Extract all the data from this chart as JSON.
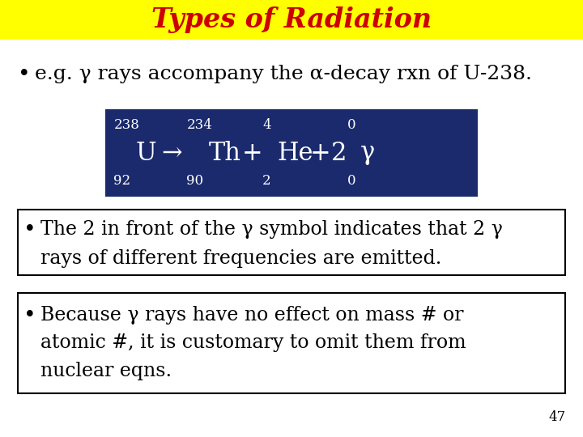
{
  "title": "Types of Radiation",
  "title_color": "#CC0000",
  "title_bg_color": "#FFFF00",
  "bg_color": "#FFFFFF",
  "bullet1": "e.g. γ rays accompany the α-decay rxn of U-238.",
  "bullet2_line1": "The 2 in front of the γ symbol indicates that 2 γ",
  "bullet2_line2": "rays of different frequencies are emitted.",
  "bullet3_line1": "Because γ rays have no effect on mass # or",
  "bullet3_line2": "atomic #, it is customary to omit them from",
  "bullet3_line3": "nuclear eqns.",
  "equation_bg": "#1A2A6C",
  "equation_text_color": "#FFFFFF",
  "page_number": "47",
  "title_fontsize": 24,
  "bullet_fontsize": 17,
  "eq_main_fontsize": 22,
  "eq_small_fontsize": 12
}
